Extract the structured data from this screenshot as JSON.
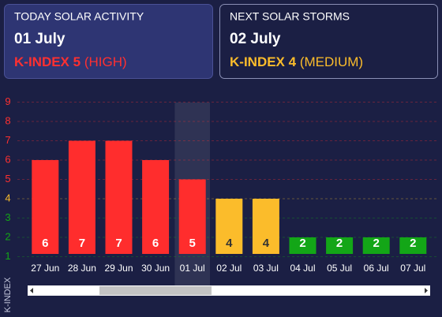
{
  "cards": [
    {
      "heading": "TODAY SOLAR ACTIVITY",
      "date": "01 July",
      "index": "K-INDEX 5",
      "level": "(HIGH)",
      "color": "#ff3030"
    },
    {
      "heading": "NEXT SOLAR STORMS",
      "date": "02 July",
      "index": "K-INDEX 4",
      "level": "(MEDIUM)",
      "color": "#fbbc2b"
    }
  ],
  "chart_data": {
    "type": "bar",
    "ylabel": "K-INDEX",
    "categories": [
      "27 Jun",
      "28 Jun",
      "29 Jun",
      "30 Jun",
      "01 Jul",
      "02 Jul",
      "03 Jul",
      "04 Jul",
      "05 Jul",
      "06 Jul",
      "07 Jul"
    ],
    "values": [
      6,
      7,
      7,
      6,
      5,
      4,
      4,
      2,
      2,
      2,
      2
    ],
    "colors": [
      "#ff2d2d",
      "#ff2d2d",
      "#ff2d2d",
      "#ff2d2d",
      "#ff2d2d",
      "#fbbc2b",
      "#fbbc2b",
      "#13a617",
      "#13a617",
      "#13a617",
      "#13a617"
    ],
    "highlight": "01 Jul",
    "ylim": [
      0,
      10
    ],
    "yticks": [
      1,
      2,
      3,
      4,
      5,
      6,
      7,
      8,
      9
    ],
    "ytick_colors": [
      "#13a617",
      "#13a617",
      "#13a617",
      "#fbbc2b",
      "#ff3030",
      "#ff3030",
      "#ff3030",
      "#ff3030",
      "#ff3030"
    ],
    "grid": true
  }
}
